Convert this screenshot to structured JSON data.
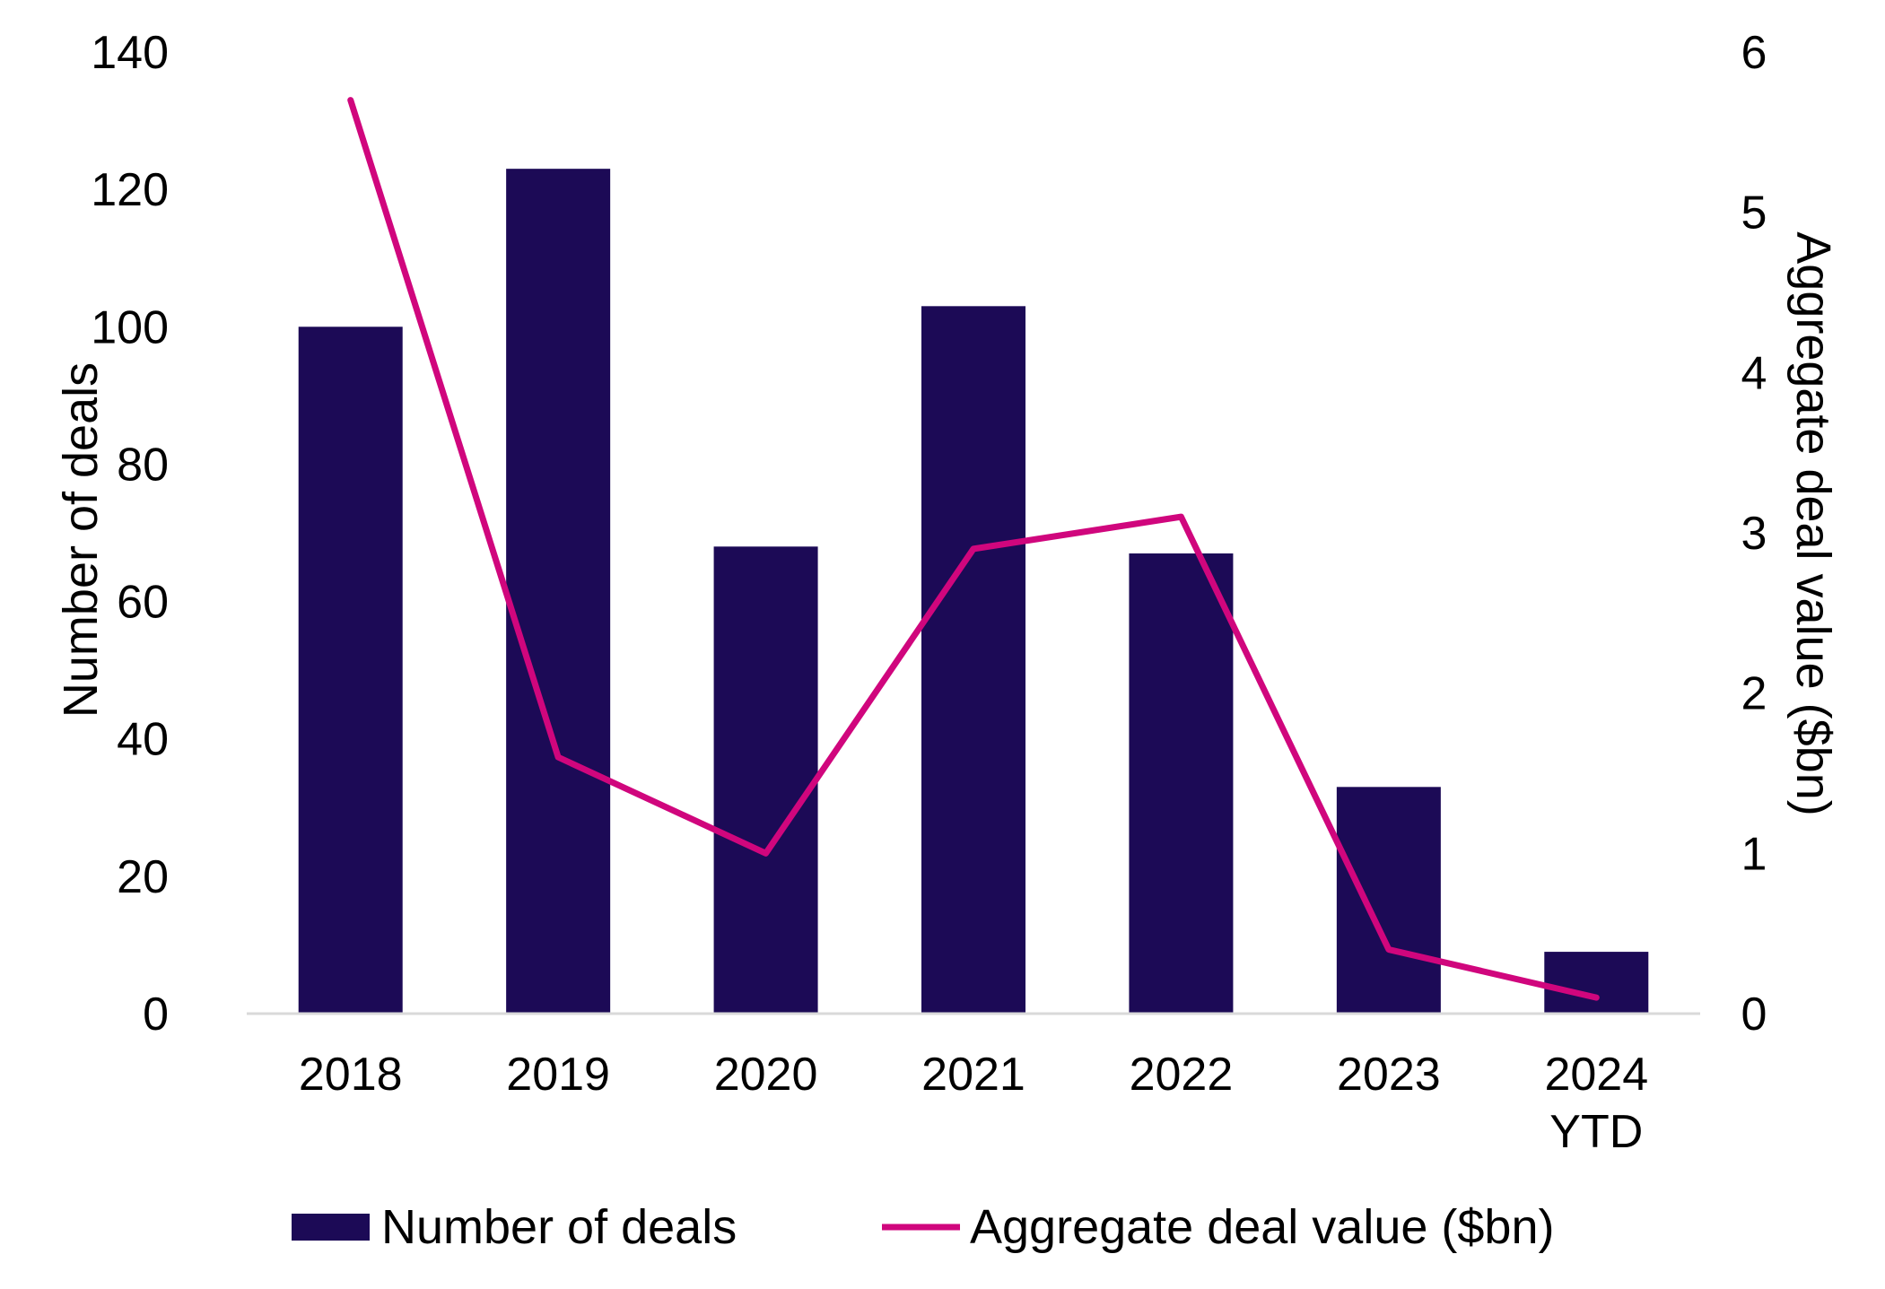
{
  "chart_data": {
    "type": "bar",
    "categories": [
      [
        "2018"
      ],
      [
        "2019"
      ],
      [
        "2020"
      ],
      [
        "2021"
      ],
      [
        "2022"
      ],
      [
        "2023"
      ],
      [
        "2024",
        "YTD"
      ]
    ],
    "series": [
      {
        "name": "Number of deals",
        "type": "bar",
        "axis": "left",
        "color": "#1c0a56",
        "values": [
          100,
          123,
          68,
          103,
          67,
          33,
          9
        ]
      },
      {
        "name": "Aggregate deal value ($bn)",
        "type": "line",
        "axis": "right",
        "color": "#d0067d",
        "values": [
          5.7,
          1.6,
          1.0,
          2.9,
          3.1,
          0.4,
          0.1
        ]
      }
    ],
    "ylabel": "Number of deals",
    "ylim": [
      0,
      140
    ],
    "yticks": [
      "0",
      "20",
      "40",
      "60",
      "80",
      "100",
      "120",
      "140"
    ],
    "y2label": "Aggregate deal value ($bn)",
    "y2lim": [
      0,
      6
    ],
    "y2ticks": [
      "0",
      "1",
      "2",
      "3",
      "4",
      "5",
      "6"
    ],
    "grid": false,
    "legend": "bottom"
  }
}
